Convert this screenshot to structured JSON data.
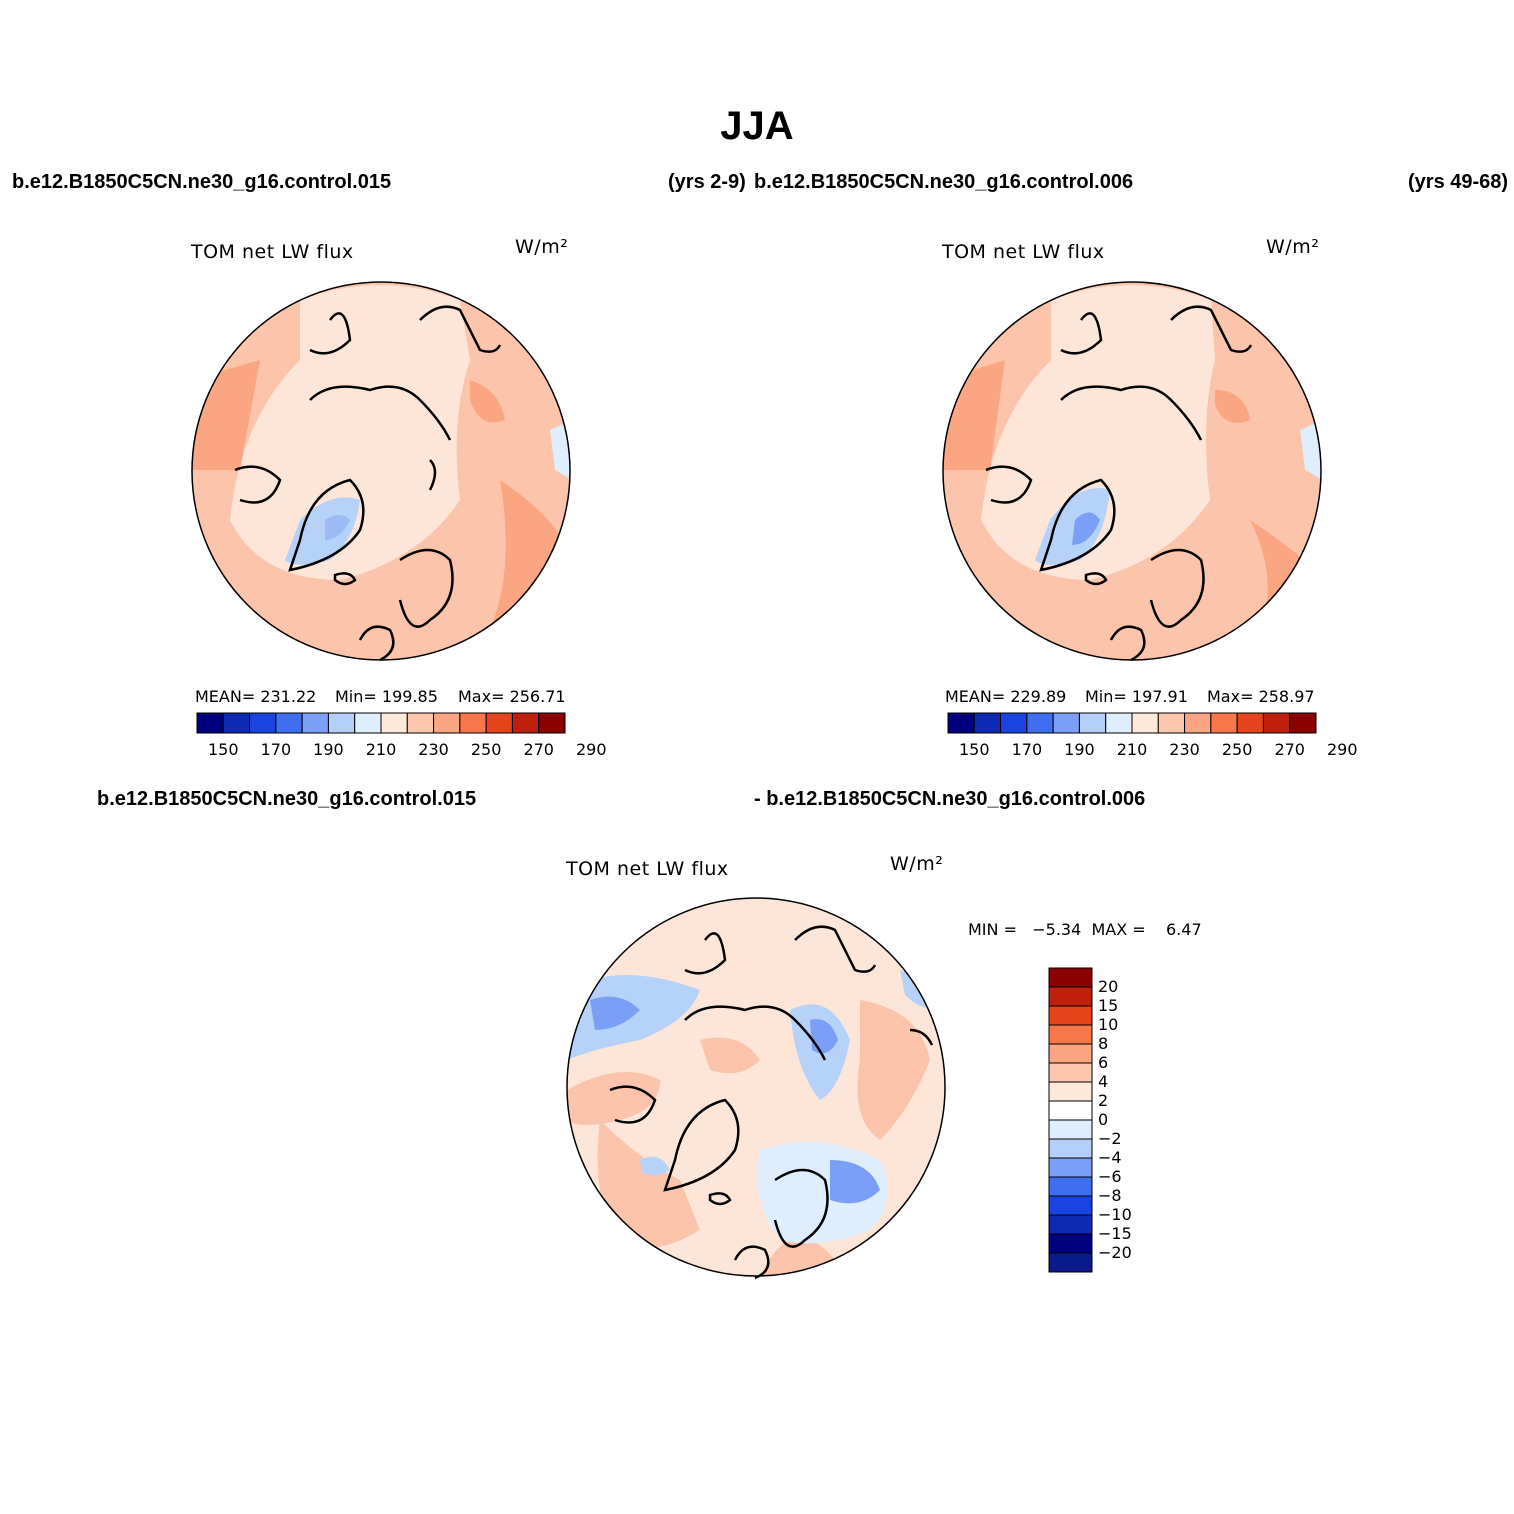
{
  "figure": {
    "season": "JJA",
    "case_a_label": "b.e12.B1850C5CN.ne30_g16.control.015",
    "case_a_years": "(yrs 2-9)",
    "case_b_label": "b.e12.B1850C5CN.ne30_g16.control.006",
    "case_b_years": "(yrs 49-68)",
    "diff_label_a": "b.e12.B1850C5CN.ne30_g16.control.015",
    "diff_label_b": "- b.e12.B1850C5CN.ne30_g16.control.006"
  },
  "colors": {
    "ocean_warm": "#fbc4ab",
    "land_light": "#fde6d8",
    "ice_blue": "#b7d2f8",
    "coast": "#000000"
  },
  "panels": [
    {
      "id": "case-a",
      "variable": "TOM net LW flux",
      "units": "W/m²",
      "mean_label": "MEAN= 231.22",
      "min_label": "Min= 199.85",
      "max_label": "Max= 256.71"
    },
    {
      "id": "case-b",
      "variable": "TOM net LW flux",
      "units": "W/m²",
      "mean_label": "MEAN= 229.89",
      "min_label": "Min= 197.91",
      "max_label": "Max= 258.97"
    },
    {
      "id": "difference",
      "variable": "TOM net LW flux",
      "units": "W/m²",
      "minmax_label": "MIN =   −5.34  MAX =    6.47"
    }
  ],
  "chart_data": [
    {
      "type": "heatmap",
      "projection": "north polar stereographic",
      "field": "TOM net LW flux",
      "units": "W/m²",
      "mean": 231.22,
      "min": 199.85,
      "max": 256.71,
      "colorbar": {
        "orientation": "horizontal",
        "tick_labels": [
          "150",
          "170",
          "190",
          "210",
          "230",
          "250",
          "270",
          "290"
        ],
        "colors": [
          "#00007f",
          "#0c2ab4",
          "#1a44e0",
          "#3f6ef0",
          "#7b9ff6",
          "#b3cffa",
          "#deeefe",
          "#fee8d8",
          "#fdc7ae",
          "#fca582",
          "#f7774b",
          "#e5441d",
          "#bf200b",
          "#8b0000"
        ]
      }
    },
    {
      "type": "heatmap",
      "projection": "north polar stereographic",
      "field": "TOM net LW flux",
      "units": "W/m²",
      "mean": 229.89,
      "min": 197.91,
      "max": 258.97,
      "colorbar": {
        "orientation": "horizontal",
        "tick_labels": [
          "150",
          "170",
          "190",
          "210",
          "230",
          "250",
          "270",
          "290"
        ],
        "colors": [
          "#00007f",
          "#0c2ab4",
          "#1a44e0",
          "#3f6ef0",
          "#7b9ff6",
          "#b3cffa",
          "#deeefe",
          "#fee8d8",
          "#fdc7ae",
          "#fca582",
          "#f7774b",
          "#e5441d",
          "#bf200b",
          "#8b0000"
        ]
      }
    },
    {
      "type": "heatmap",
      "projection": "north polar stereographic",
      "field": "TOM net LW flux",
      "units": "W/m²",
      "min": -5.34,
      "max": 6.47,
      "colorbar": {
        "orientation": "vertical",
        "tick_labels": [
          "20",
          "15",
          "10",
          "8",
          "6",
          "4",
          "2",
          "0",
          "−2",
          "−4",
          "−6",
          "−8",
          "−10",
          "−15",
          "−20"
        ],
        "colors_top_to_bottom": [
          "#8b0000",
          "#bf200b",
          "#e5441d",
          "#f7774b",
          "#fca582",
          "#fdc7ae",
          "#fee8d8",
          "#ffffff",
          "#deeefe",
          "#b3cffa",
          "#7b9ff6",
          "#3f6ef0",
          "#1a44e0",
          "#0c2ab4",
          "#00007f",
          "#0a1a8a"
        ]
      }
    }
  ]
}
